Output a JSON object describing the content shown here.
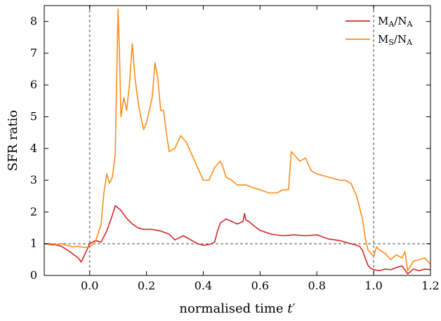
{
  "chart_data": {
    "type": "line",
    "title": "",
    "xlabel": "normalised time t′",
    "ylabel": "SFR ratio",
    "xlim": [
      -0.16,
      1.2
    ],
    "ylim": [
      0,
      8.5
    ],
    "xticks": [
      0.0,
      0.2,
      0.4,
      0.6,
      0.8,
      1.0,
      1.2
    ],
    "xtick_labels": [
      "0.0",
      "0.2",
      "0.4",
      "0.6",
      "0.8",
      "1.0",
      "1.2"
    ],
    "yticks": [
      0,
      1,
      2,
      3,
      4,
      5,
      6,
      7,
      8
    ],
    "ytick_labels": [
      "0",
      "1",
      "2",
      "3",
      "4",
      "5",
      "6",
      "7",
      "8"
    ],
    "grid": false,
    "legend_position": "top-right",
    "reference_lines": [
      {
        "orientation": "vertical",
        "value": 0.0,
        "style": "dotted",
        "color": "#999999"
      },
      {
        "orientation": "vertical",
        "value": 1.0,
        "style": "dotted",
        "color": "#999999"
      },
      {
        "orientation": "horizontal",
        "value": 1.0,
        "style": "dotted",
        "color": "#999999"
      }
    ],
    "series": [
      {
        "name": "M_A/N_A",
        "legend_main": "M",
        "legend_sub": "A",
        "legend_sep": "/N",
        "legend_sub2": "A",
        "color": "#d62728",
        "x": [
          -0.16,
          -0.13,
          -0.1,
          -0.07,
          -0.04,
          -0.03,
          -0.01,
          0.0,
          0.02,
          0.04,
          0.06,
          0.08,
          0.09,
          0.11,
          0.13,
          0.15,
          0.17,
          0.19,
          0.22,
          0.25,
          0.28,
          0.3,
          0.33,
          0.36,
          0.38,
          0.4,
          0.42,
          0.44,
          0.45,
          0.46,
          0.48,
          0.5,
          0.52,
          0.54,
          0.545,
          0.55,
          0.56,
          0.58,
          0.6,
          0.64,
          0.68,
          0.72,
          0.76,
          0.8,
          0.84,
          0.88,
          0.92,
          0.94,
          0.95,
          0.96,
          0.97,
          0.98,
          0.99,
          1.0,
          1.02,
          1.04,
          1.06,
          1.08,
          1.1,
          1.12,
          1.14,
          1.16,
          1.18,
          1.2
        ],
        "y": [
          1.0,
          0.98,
          0.92,
          0.75,
          0.55,
          0.42,
          0.8,
          1.0,
          1.1,
          1.05,
          1.4,
          1.9,
          2.2,
          2.05,
          1.8,
          1.62,
          1.5,
          1.45,
          1.45,
          1.4,
          1.3,
          1.12,
          1.25,
          1.1,
          1.0,
          0.95,
          0.97,
          1.05,
          1.4,
          1.65,
          1.78,
          1.7,
          1.62,
          1.7,
          1.95,
          1.75,
          1.7,
          1.55,
          1.42,
          1.3,
          1.25,
          1.28,
          1.25,
          1.28,
          1.15,
          1.1,
          1.0,
          0.95,
          0.92,
          0.8,
          0.55,
          0.32,
          0.22,
          0.18,
          0.15,
          0.2,
          0.18,
          0.25,
          0.3,
          0.05,
          0.2,
          0.15,
          0.2,
          0.18
        ]
      },
      {
        "name": "M_S/N_A",
        "legend_main": "M",
        "legend_sub": "S",
        "legend_sep": "/N",
        "legend_sub2": "A",
        "color": "#ff8c1a",
        "x": [
          -0.16,
          -0.13,
          -0.1,
          -0.08,
          -0.06,
          -0.04,
          -0.02,
          0.0,
          0.02,
          0.04,
          0.05,
          0.06,
          0.07,
          0.08,
          0.09,
          0.1,
          0.105,
          0.11,
          0.12,
          0.13,
          0.14,
          0.15,
          0.16,
          0.17,
          0.18,
          0.19,
          0.2,
          0.21,
          0.22,
          0.23,
          0.24,
          0.25,
          0.26,
          0.27,
          0.28,
          0.3,
          0.32,
          0.34,
          0.36,
          0.38,
          0.4,
          0.42,
          0.44,
          0.46,
          0.47,
          0.48,
          0.5,
          0.52,
          0.55,
          0.58,
          0.6,
          0.63,
          0.66,
          0.68,
          0.7,
          0.71,
          0.72,
          0.74,
          0.76,
          0.78,
          0.8,
          0.84,
          0.88,
          0.9,
          0.92,
          0.94,
          0.96,
          0.97,
          0.98,
          0.99,
          1.0,
          1.01,
          1.02,
          1.04,
          1.06,
          1.08,
          1.1,
          1.11,
          1.12,
          1.14,
          1.16,
          1.18,
          1.2
        ],
        "y": [
          1.0,
          0.95,
          1.0,
          0.95,
          0.9,
          0.92,
          0.88,
          0.9,
          1.05,
          1.6,
          2.6,
          3.2,
          2.9,
          3.1,
          3.8,
          8.4,
          7.0,
          5.0,
          5.6,
          5.2,
          6.0,
          7.3,
          6.2,
          5.5,
          5.0,
          4.6,
          4.8,
          5.2,
          5.6,
          6.7,
          6.2,
          5.2,
          5.2,
          4.5,
          3.9,
          4.0,
          4.4,
          4.2,
          3.8,
          3.4,
          3.0,
          3.0,
          3.4,
          3.6,
          3.4,
          3.1,
          3.0,
          2.85,
          2.85,
          2.75,
          2.7,
          2.6,
          2.6,
          2.7,
          2.7,
          3.9,
          3.8,
          3.6,
          3.7,
          3.3,
          3.2,
          3.1,
          3.0,
          3.0,
          2.9,
          2.5,
          1.8,
          1.2,
          0.8,
          0.7,
          0.6,
          0.9,
          0.8,
          0.7,
          0.5,
          0.65,
          0.55,
          0.75,
          0.15,
          0.45,
          0.5,
          0.55,
          0.35
        ]
      }
    ]
  }
}
